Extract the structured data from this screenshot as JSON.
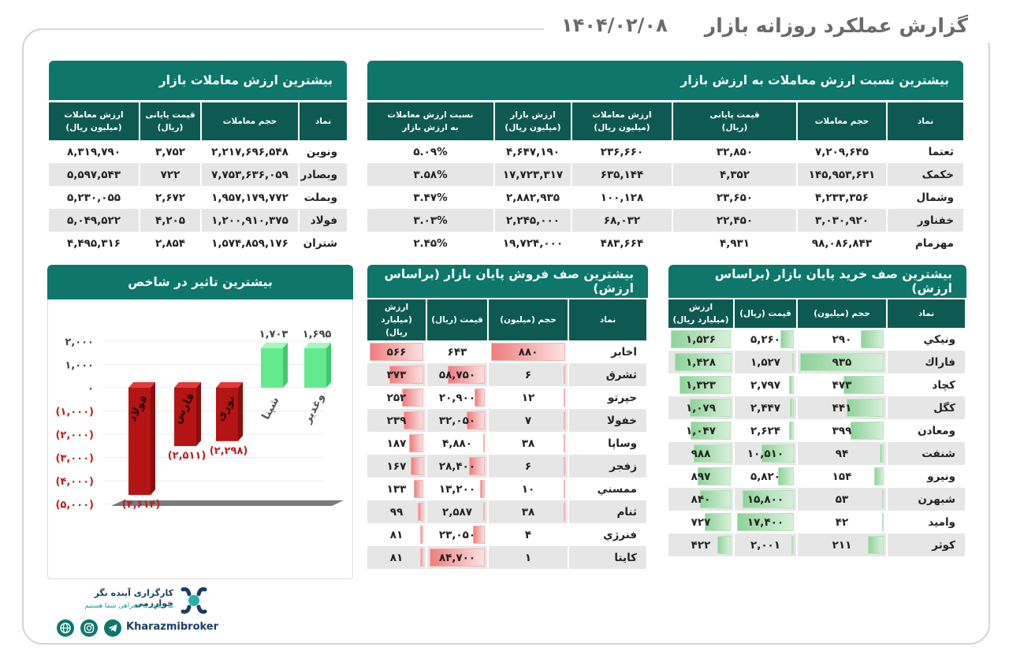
{
  "header": {
    "title": "گزارش عملکرد روزانه بازار",
    "date": "۱۴۰۴/۰۲/۰۸"
  },
  "top_value": {
    "title": "بیشترین ارزش معاملات بازار",
    "headers": [
      "نماد",
      "حجم معاملات",
      "قیمت پایانی\n(ریال)",
      "ارزش معاملات\n(میلیون ریال)"
    ],
    "rows": [
      [
        "ونوین",
        "۲,۲۱۷,۶۹۶,۵۴۸",
        "۳,۷۵۲",
        "۸,۳۱۹,۷۹۰"
      ],
      [
        "وبصادر",
        "۷,۷۵۳,۶۳۶,۰۵۹",
        "۷۲۲",
        "۵,۵۹۷,۵۴۳"
      ],
      [
        "وبملت",
        "۱,۹۵۷,۱۷۹,۷۷۲",
        "۲,۶۷۲",
        "۵,۲۳۰,۰۵۵"
      ],
      [
        "فولاد",
        "۱,۲۰۰,۹۱۰,۳۷۵",
        "۴,۲۰۵",
        "۵,۰۴۹,۵۲۲"
      ],
      [
        "شتران",
        "۱,۵۷۴,۸۵۹,۱۷۶",
        "۲,۸۵۴",
        "۴,۴۹۵,۳۱۶"
      ]
    ]
  },
  "top_ratio": {
    "title": "بیشترین نسبت ارزش معاملات به ارزش بازار",
    "headers": [
      "نماد",
      "حجم معاملات",
      "قیمت پایانی\n(ریال)",
      "ارزش معاملات\n(میلیون ریال)",
      "ارزش بازار\n(میلیون ریال)",
      "نسبت ارزش معاملات\nبه ارزش بازار"
    ],
    "rows": [
      [
        "ثعتما",
        "۷,۲۰۹,۶۴۵",
        "۳۲,۸۵۰",
        "۲۳۶,۶۶۰",
        "۴,۶۴۷,۱۹۰",
        "۵.۰۹%"
      ],
      [
        "خکمک",
        "۱۴۵,۹۵۳,۶۳۱",
        "۴,۳۵۲",
        "۶۳۵,۱۴۴",
        "۱۷,۷۲۳,۳۱۷",
        "۳.۵۸%"
      ],
      [
        "وشمال",
        "۴,۲۳۳,۳۵۶",
        "۲۳,۶۵۰",
        "۱۰۰,۱۲۸",
        "۲,۸۸۲,۹۳۵",
        "۳.۴۷%"
      ],
      [
        "خفناور",
        "۳,۰۳۰,۹۲۰",
        "۲۲,۴۵۰",
        "۶۸,۰۳۲",
        "۲,۲۴۵,۰۰۰",
        "۳.۰۳%"
      ],
      [
        "مهرمام",
        "۹۸,۰۸۶,۸۴۳",
        "۴,۹۳۱",
        "۴۸۳,۶۶۴",
        "۱۹,۷۲۴,۰۰۰",
        "۲.۴۵%"
      ]
    ]
  },
  "impact": {
    "title": "بیشترین تاثیر در شاخص",
    "y_ticks": [
      "۲,۰۰۰",
      "۱,۰۰۰",
      "۰",
      "(۱,۰۰۰)",
      "(۲,۰۰۰)",
      "(۳,۰۰۰)",
      "(۴,۰۰۰)",
      "(۵,۰۰۰)"
    ]
  },
  "chart_data": {
    "type": "bar",
    "title": "بیشترین تاثیر در شاخص",
    "categories": [
      "فولاد",
      "فارس",
      "نوری",
      "شپنا",
      "وغدیر"
    ],
    "values": [
      -4614,
      -2511,
      -2298,
      1703,
      1695
    ],
    "labels": [
      "(۴,۶۱۴)",
      "(۲,۵۱۱)",
      "(۲,۲۹۸)",
      "۱,۷۰۳",
      "۱,۶۹۵"
    ],
    "ylim": [
      -5000,
      2000
    ],
    "colors": {
      "negative": "#c21c1c",
      "positive": "#5fe58a"
    }
  },
  "sell_queue": {
    "title": "بیشترین صف فروش پایان بازار (براساس ارزش)",
    "headers": [
      "نماد",
      "حجم (میلیون)",
      "قیمت (ریال)",
      "ارزش\n(میلیارد ریال)"
    ],
    "rows": [
      [
        "اخابر",
        "۸۸۰",
        "۶۴۳",
        "۵۶۶"
      ],
      [
        "ثشرق",
        "۶",
        "۵۸,۷۵۰",
        "۳۷۳"
      ],
      [
        "حپرتو",
        "۱۲",
        "۲۰,۹۰۰",
        "۲۵۲"
      ],
      [
        "خفولا",
        "۷",
        "۳۲,۰۵۰",
        "۲۳۹"
      ],
      [
        "وساپا",
        "۳۸",
        "۴,۸۸۰",
        "۱۸۷"
      ],
      [
        "زفجر",
        "۶",
        "۲۸,۴۰۰",
        "۱۶۷"
      ],
      [
        "ممسني",
        "۱۰",
        "۱۳,۲۰۰",
        "۱۳۳"
      ],
      [
        "ثنام",
        "۳۸",
        "۲,۵۸۷",
        "۹۹"
      ],
      [
        "فنرژي",
        "۴",
        "۲۳,۰۵۰",
        "۸۱"
      ],
      [
        "كايتا",
        "۱",
        "۸۴,۷۰۰",
        "۸۱"
      ]
    ],
    "bars": [
      [
        1.0,
        0.0,
        1.0
      ],
      [
        0.01,
        0.7,
        0.66
      ],
      [
        0.01,
        0.25,
        0.45
      ],
      [
        0.01,
        0.38,
        0.42
      ],
      [
        0.04,
        0.06,
        0.33
      ],
      [
        0.01,
        0.34,
        0.3
      ],
      [
        0.01,
        0.16,
        0.24
      ],
      [
        0.04,
        0.03,
        0.18
      ],
      [
        0.0,
        0.28,
        0.14
      ],
      [
        0.0,
        1.0,
        0.14
      ]
    ]
  },
  "buy_queue": {
    "title": "بیشترین صف خرید پایان بازار (براساس ارزش)",
    "headers": [
      "نماد",
      "حجم (میلیون)",
      "قیمت (ریال)",
      "ارزش\n(میلیارد ریال)"
    ],
    "rows": [
      [
        "ونيكي",
        "۲۹۰",
        "۵,۲۶۰",
        "۱,۵۲۶"
      ],
      [
        "فاراك",
        "۹۳۵",
        "۱,۵۲۷",
        "۱,۴۲۸"
      ],
      [
        "كچاد",
        "۴۷۳",
        "۲,۷۹۷",
        "۱,۳۲۳"
      ],
      [
        "كگل",
        "۴۴۱",
        "۲,۴۴۷",
        "۱,۰۷۹"
      ],
      [
        "ومعادن",
        "۳۹۹",
        "۲,۶۲۴",
        "۱,۰۴۷"
      ],
      [
        "شنفت",
        "۹۴",
        "۱۰,۵۱۰",
        "۹۸۸"
      ],
      [
        "ونيرو",
        "۱۵۴",
        "۵,۸۲۰",
        "۸۹۷"
      ],
      [
        "شبهرن",
        "۵۳",
        "۱۵,۸۰۰",
        "۸۴۰"
      ],
      [
        "واميد",
        "۴۲",
        "۱۷,۴۰۰",
        "۷۲۷"
      ],
      [
        "كوثر",
        "۲۱۱",
        "۲,۰۰۱",
        "۴۲۲"
      ]
    ],
    "bars": [
      [
        0.31,
        0.3,
        1.0
      ],
      [
        1.0,
        0.09,
        0.94
      ],
      [
        0.51,
        0.16,
        0.87
      ],
      [
        0.47,
        0.14,
        0.71
      ],
      [
        0.43,
        0.15,
        0.69
      ],
      [
        0.1,
        0.6,
        0.65
      ],
      [
        0.16,
        0.33,
        0.59
      ],
      [
        0.06,
        0.91,
        0.55
      ],
      [
        0.04,
        1.0,
        0.48
      ],
      [
        0.23,
        0.11,
        0.28
      ]
    ]
  },
  "footer": {
    "line1": "کارگزاری آینده نگر خوارزمی",
    "line2": "ما متعهد به همراهی شما هستیم",
    "brand": "Kharazmibroker",
    "icons": [
      "web-icon",
      "instagram-icon",
      "telegram-icon"
    ]
  }
}
